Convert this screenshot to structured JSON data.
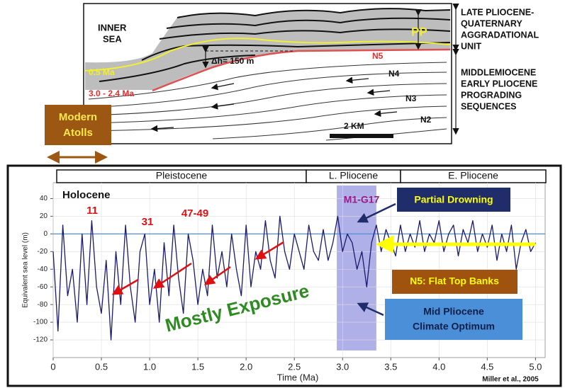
{
  "diagram": {
    "inner_sea": [
      "INNER",
      "SEA"
    ],
    "upper_unit": [
      "LATE PLIOCENE-",
      "QUATERNARY",
      "AGGRADATIONAL",
      "UNIT"
    ],
    "lower_unit": [
      "MIDDLEMIOCENE",
      "EARLY PLIOCENE",
      "PROGRADING",
      "SEQUENCES"
    ],
    "pp": "PP",
    "dh": "Δh= 150 m",
    "n5": "N5",
    "n4": "N4",
    "n3": "N3",
    "n2": "N2",
    "age_young": "0.5 Ma",
    "age_old": "3.0 - 2.4 Ma",
    "scale": "2 KM",
    "atolls": [
      "Modern",
      "Atolls"
    ]
  },
  "chart_data": {
    "type": "line",
    "y_label": "Equivalent sea level (m)",
    "x_label": "Time (Ma)",
    "epochs": [
      "Pleistocene",
      "L. Pliocene",
      "E. Pliocene"
    ],
    "color": "#1a1a6e",
    "x": [
      0,
      0.05,
      0.1,
      0.15,
      0.2,
      0.25,
      0.3,
      0.35,
      0.4,
      0.45,
      0.5,
      0.55,
      0.6,
      0.65,
      0.7,
      0.75,
      0.8,
      0.85,
      0.9,
      0.95,
      1,
      1.05,
      1.1,
      1.15,
      1.2,
      1.25,
      1.3,
      1.35,
      1.4,
      1.45,
      1.5,
      1.55,
      1.6,
      1.65,
      1.7,
      1.75,
      1.8,
      1.85,
      1.9,
      1.95,
      2,
      2.05,
      2.1,
      2.15,
      2.2,
      2.25,
      2.3,
      2.35,
      2.4,
      2.45,
      2.5,
      2.55,
      2.6,
      2.65,
      2.7,
      2.75,
      2.8,
      2.85,
      2.9,
      2.95,
      3,
      3.05,
      3.1,
      3.15,
      3.2,
      3.25,
      3.3,
      3.35,
      3.4,
      3.45,
      3.5,
      3.55,
      3.6,
      3.65,
      3.7,
      3.75,
      3.8,
      3.85,
      3.9,
      3.95,
      4,
      4.05,
      4.1,
      4.15,
      4.2,
      4.25,
      4.3,
      4.35,
      4.4,
      4.45,
      4.5,
      4.55,
      4.6,
      4.65,
      4.7,
      4.75,
      4.8,
      4.85,
      4.9,
      4.95,
      5
    ],
    "values": [
      -20,
      -110,
      10,
      -70,
      -40,
      -100,
      0,
      -80,
      15,
      -60,
      -90,
      -30,
      -120,
      -20,
      -80,
      10,
      -60,
      -100,
      -20,
      0,
      -80,
      -40,
      -100,
      -10,
      -70,
      10,
      -50,
      -90,
      0,
      -30,
      -80,
      -40,
      -70,
      10,
      -50,
      -20,
      -60,
      0,
      -40,
      -70,
      10,
      -60,
      -20,
      -40,
      15,
      -30,
      -50,
      20,
      -20,
      -40,
      0,
      -20,
      -40,
      10,
      -20,
      -30,
      5,
      -30,
      -10,
      20,
      -20,
      0,
      -10,
      -40,
      -20,
      -60,
      -10,
      10,
      -20,
      5,
      -10,
      -25,
      10,
      -20,
      0,
      -15,
      15,
      -20,
      0,
      -10,
      15,
      -20,
      0,
      10,
      -25,
      5,
      -10,
      15,
      -20,
      0,
      -15,
      10,
      -30,
      0,
      -20,
      10,
      -40,
      -10,
      5,
      -20,
      -10
    ],
    "xlim": [
      0,
      5.1
    ],
    "ylim": [
      -140,
      58
    ],
    "xticks": [
      0,
      0.5,
      {
        "value": 1,
        "label": "1.0"
      },
      1.5,
      {
        "value": 2,
        "label": "2.0"
      },
      2.5,
      {
        "value": 3,
        "label": "3.0"
      },
      3.5,
      {
        "value": 4,
        "label": "4.0"
      },
      4.5,
      {
        "value": 5,
        "label": "5.0"
      }
    ],
    "yticks": [
      40,
      20,
      0,
      -20,
      -40,
      -60,
      -80,
      -100,
      -120
    ],
    "highlight_range": [
      2.94,
      3.35
    ],
    "annotations": {
      "holocene": "Holocene",
      "peaks": [
        "11",
        "31",
        "47-49"
      ],
      "event": "M1-G17",
      "partial": "Partial Drowning",
      "flat": "N5: Flat Top Banks",
      "optimum": [
        "Mid Pliocene",
        "Climate Optimum"
      ],
      "exposure": "Mostly Exposure",
      "credit": "Miller et al., 2005"
    }
  }
}
